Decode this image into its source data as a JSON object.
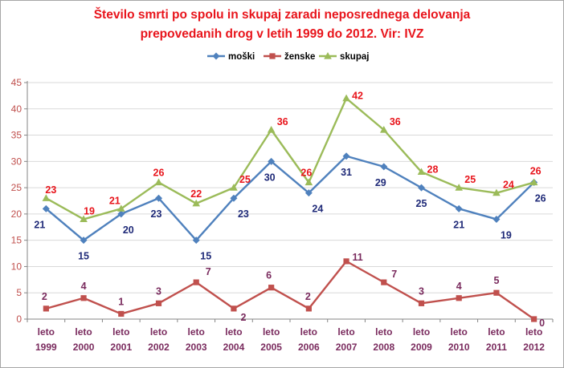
{
  "chart_data": {
    "type": "line",
    "title_lines": [
      "Število smrti po spolu in skupaj  zaradi neposrednega delovanja",
      "prepovedanih drog v letih 1999 do 2012. Vir: IVZ"
    ],
    "categories": [
      [
        "leto",
        "1999"
      ],
      [
        "leto",
        "2000"
      ],
      [
        "leto",
        "2001"
      ],
      [
        "leto",
        "2002"
      ],
      [
        "leto",
        "2003"
      ],
      [
        "leto",
        "2004"
      ],
      [
        "leto",
        "2005"
      ],
      [
        "leto",
        "2006"
      ],
      [
        "leto",
        "2007"
      ],
      [
        "leto",
        "2008"
      ],
      [
        "leto",
        "2009"
      ],
      [
        "leto",
        "2010"
      ],
      [
        "leto",
        "2011"
      ],
      [
        "leto",
        "2012"
      ]
    ],
    "series": [
      {
        "name": "moški",
        "color": "#4f81bd",
        "label_color": "#1f2a78",
        "marker": "diamond",
        "values": [
          21,
          15,
          20,
          23,
          15,
          23,
          30,
          24,
          31,
          29,
          25,
          21,
          19,
          26
        ]
      },
      {
        "name": "ženske",
        "color": "#c0504d",
        "label_color": "#7a2b5e",
        "marker": "square",
        "values": [
          2,
          4,
          1,
          3,
          7,
          2,
          6,
          2,
          11,
          7,
          3,
          4,
          5,
          0
        ]
      },
      {
        "name": "skupaj",
        "color": "#9bbb59",
        "label_color": "#e8141b",
        "marker": "triangle",
        "values": [
          23,
          19,
          21,
          26,
          22,
          25,
          36,
          26,
          42,
          36,
          28,
          25,
          24,
          26
        ]
      }
    ],
    "yticks": [
      0,
      5,
      10,
      15,
      20,
      25,
      30,
      35,
      40,
      45
    ],
    "ylim": [
      0,
      45
    ],
    "grid": true,
    "legend": "top-center",
    "xlabel": "",
    "ylabel": ""
  }
}
